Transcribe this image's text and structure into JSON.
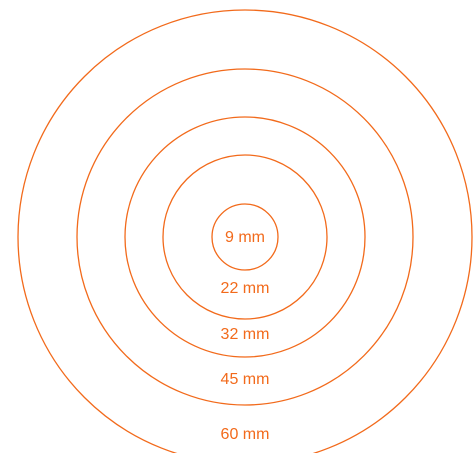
{
  "colors": {
    "stroke": "#F26A1B",
    "label": "#F26A1B",
    "background": "#FFFFFF"
  },
  "rings": [
    {
      "diameter_mm": 9,
      "label": "9 mm"
    },
    {
      "diameter_mm": 22,
      "label": "22 mm"
    },
    {
      "diameter_mm": 32,
      "label": "32 mm"
    },
    {
      "diameter_mm": 45,
      "label": "45 mm"
    },
    {
      "diameter_mm": 60,
      "label": "60 mm"
    }
  ]
}
